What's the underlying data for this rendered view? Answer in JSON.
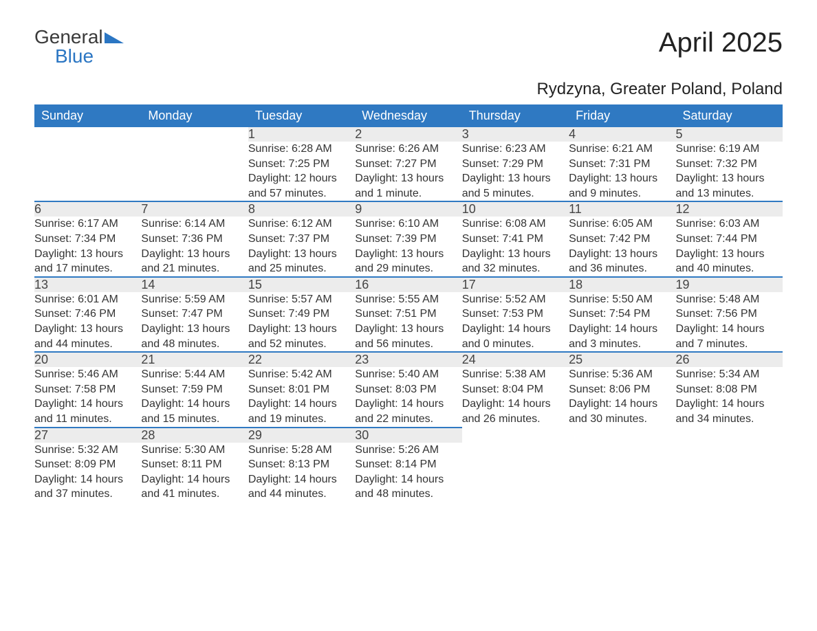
{
  "brand": {
    "general": "General",
    "blue": "Blue"
  },
  "title": "April 2025",
  "subtitle": "Rydzyna, Greater Poland, Poland",
  "colors": {
    "header_bg": "#2f79c2",
    "header_text": "#ffffff",
    "daynum_bg": "#ececec",
    "rule": "#2f79c2",
    "body_text": "#333333",
    "page_bg": "#ffffff",
    "logo_blue": "#2b76c3"
  },
  "typography": {
    "title_fontsize": 40,
    "subtitle_fontsize": 24,
    "header_fontsize": 18,
    "daynum_fontsize": 18,
    "cell_fontsize": 16
  },
  "weekdays": [
    "Sunday",
    "Monday",
    "Tuesday",
    "Wednesday",
    "Thursday",
    "Friday",
    "Saturday"
  ],
  "weeks": [
    [
      null,
      null,
      {
        "n": "1",
        "sr": "Sunrise: 6:28 AM",
        "ss": "Sunset: 7:25 PM",
        "d1": "Daylight: 12 hours",
        "d2": "and 57 minutes."
      },
      {
        "n": "2",
        "sr": "Sunrise: 6:26 AM",
        "ss": "Sunset: 7:27 PM",
        "d1": "Daylight: 13 hours",
        "d2": "and 1 minute."
      },
      {
        "n": "3",
        "sr": "Sunrise: 6:23 AM",
        "ss": "Sunset: 7:29 PM",
        "d1": "Daylight: 13 hours",
        "d2": "and 5 minutes."
      },
      {
        "n": "4",
        "sr": "Sunrise: 6:21 AM",
        "ss": "Sunset: 7:31 PM",
        "d1": "Daylight: 13 hours",
        "d2": "and 9 minutes."
      },
      {
        "n": "5",
        "sr": "Sunrise: 6:19 AM",
        "ss": "Sunset: 7:32 PM",
        "d1": "Daylight: 13 hours",
        "d2": "and 13 minutes."
      }
    ],
    [
      {
        "n": "6",
        "sr": "Sunrise: 6:17 AM",
        "ss": "Sunset: 7:34 PM",
        "d1": "Daylight: 13 hours",
        "d2": "and 17 minutes."
      },
      {
        "n": "7",
        "sr": "Sunrise: 6:14 AM",
        "ss": "Sunset: 7:36 PM",
        "d1": "Daylight: 13 hours",
        "d2": "and 21 minutes."
      },
      {
        "n": "8",
        "sr": "Sunrise: 6:12 AM",
        "ss": "Sunset: 7:37 PM",
        "d1": "Daylight: 13 hours",
        "d2": "and 25 minutes."
      },
      {
        "n": "9",
        "sr": "Sunrise: 6:10 AM",
        "ss": "Sunset: 7:39 PM",
        "d1": "Daylight: 13 hours",
        "d2": "and 29 minutes."
      },
      {
        "n": "10",
        "sr": "Sunrise: 6:08 AM",
        "ss": "Sunset: 7:41 PM",
        "d1": "Daylight: 13 hours",
        "d2": "and 32 minutes."
      },
      {
        "n": "11",
        "sr": "Sunrise: 6:05 AM",
        "ss": "Sunset: 7:42 PM",
        "d1": "Daylight: 13 hours",
        "d2": "and 36 minutes."
      },
      {
        "n": "12",
        "sr": "Sunrise: 6:03 AM",
        "ss": "Sunset: 7:44 PM",
        "d1": "Daylight: 13 hours",
        "d2": "and 40 minutes."
      }
    ],
    [
      {
        "n": "13",
        "sr": "Sunrise: 6:01 AM",
        "ss": "Sunset: 7:46 PM",
        "d1": "Daylight: 13 hours",
        "d2": "and 44 minutes."
      },
      {
        "n": "14",
        "sr": "Sunrise: 5:59 AM",
        "ss": "Sunset: 7:47 PM",
        "d1": "Daylight: 13 hours",
        "d2": "and 48 minutes."
      },
      {
        "n": "15",
        "sr": "Sunrise: 5:57 AM",
        "ss": "Sunset: 7:49 PM",
        "d1": "Daylight: 13 hours",
        "d2": "and 52 minutes."
      },
      {
        "n": "16",
        "sr": "Sunrise: 5:55 AM",
        "ss": "Sunset: 7:51 PM",
        "d1": "Daylight: 13 hours",
        "d2": "and 56 minutes."
      },
      {
        "n": "17",
        "sr": "Sunrise: 5:52 AM",
        "ss": "Sunset: 7:53 PM",
        "d1": "Daylight: 14 hours",
        "d2": "and 0 minutes."
      },
      {
        "n": "18",
        "sr": "Sunrise: 5:50 AM",
        "ss": "Sunset: 7:54 PM",
        "d1": "Daylight: 14 hours",
        "d2": "and 3 minutes."
      },
      {
        "n": "19",
        "sr": "Sunrise: 5:48 AM",
        "ss": "Sunset: 7:56 PM",
        "d1": "Daylight: 14 hours",
        "d2": "and 7 minutes."
      }
    ],
    [
      {
        "n": "20",
        "sr": "Sunrise: 5:46 AM",
        "ss": "Sunset: 7:58 PM",
        "d1": "Daylight: 14 hours",
        "d2": "and 11 minutes."
      },
      {
        "n": "21",
        "sr": "Sunrise: 5:44 AM",
        "ss": "Sunset: 7:59 PM",
        "d1": "Daylight: 14 hours",
        "d2": "and 15 minutes."
      },
      {
        "n": "22",
        "sr": "Sunrise: 5:42 AM",
        "ss": "Sunset: 8:01 PM",
        "d1": "Daylight: 14 hours",
        "d2": "and 19 minutes."
      },
      {
        "n": "23",
        "sr": "Sunrise: 5:40 AM",
        "ss": "Sunset: 8:03 PM",
        "d1": "Daylight: 14 hours",
        "d2": "and 22 minutes."
      },
      {
        "n": "24",
        "sr": "Sunrise: 5:38 AM",
        "ss": "Sunset: 8:04 PM",
        "d1": "Daylight: 14 hours",
        "d2": "and 26 minutes."
      },
      {
        "n": "25",
        "sr": "Sunrise: 5:36 AM",
        "ss": "Sunset: 8:06 PM",
        "d1": "Daylight: 14 hours",
        "d2": "and 30 minutes."
      },
      {
        "n": "26",
        "sr": "Sunrise: 5:34 AM",
        "ss": "Sunset: 8:08 PM",
        "d1": "Daylight: 14 hours",
        "d2": "and 34 minutes."
      }
    ],
    [
      {
        "n": "27",
        "sr": "Sunrise: 5:32 AM",
        "ss": "Sunset: 8:09 PM",
        "d1": "Daylight: 14 hours",
        "d2": "and 37 minutes."
      },
      {
        "n": "28",
        "sr": "Sunrise: 5:30 AM",
        "ss": "Sunset: 8:11 PM",
        "d1": "Daylight: 14 hours",
        "d2": "and 41 minutes."
      },
      {
        "n": "29",
        "sr": "Sunrise: 5:28 AM",
        "ss": "Sunset: 8:13 PM",
        "d1": "Daylight: 14 hours",
        "d2": "and 44 minutes."
      },
      {
        "n": "30",
        "sr": "Sunrise: 5:26 AM",
        "ss": "Sunset: 8:14 PM",
        "d1": "Daylight: 14 hours",
        "d2": "and 48 minutes."
      },
      null,
      null,
      null
    ]
  ]
}
